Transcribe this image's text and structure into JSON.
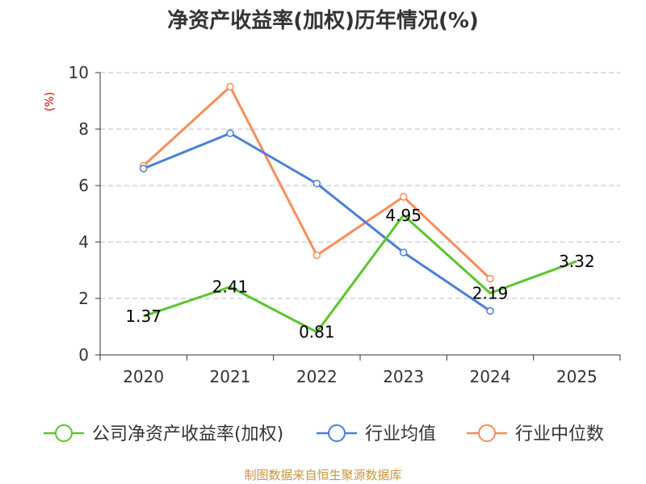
{
  "chart_data": {
    "type": "line",
    "title": "净资产收益率(加权)历年情况(%)",
    "ylabel": "(%)",
    "xlabel": "",
    "categories": [
      "2020",
      "2021",
      "2022",
      "2023",
      "2024",
      "2025"
    ],
    "ylim": [
      0,
      10
    ],
    "yticks": [
      "0",
      "2",
      "4",
      "6",
      "8",
      "10"
    ],
    "grid": true,
    "legend_position": "bottom",
    "series": [
      {
        "name": "公司净资产收益率(加权)",
        "color": "#5ac52d",
        "values": [
          1.37,
          2.41,
          0.81,
          4.95,
          2.19,
          3.32
        ],
        "labels": [
          "1.37",
          "2.41",
          "0.81",
          "4.95",
          "2.19",
          "3.32"
        ]
      },
      {
        "name": "行业均值",
        "color": "#4a7fd6",
        "values": [
          6.6,
          7.85,
          6.07,
          3.63,
          1.56,
          null
        ]
      },
      {
        "name": "行业中位数",
        "color": "#fa8c5a",
        "values": [
          6.7,
          9.5,
          3.53,
          5.6,
          2.7,
          null
        ]
      }
    ],
    "source": "制图数据来自恒生聚源数据库"
  }
}
